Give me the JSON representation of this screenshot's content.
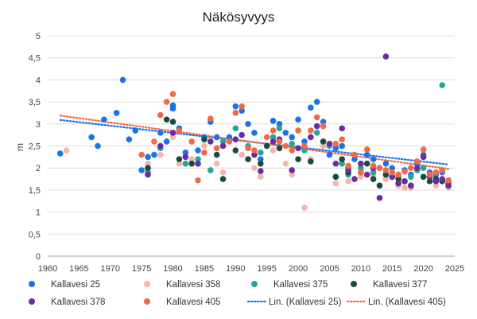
{
  "chart_data": {
    "type": "scatter",
    "title": "Näkösyvyys",
    "xlabel": "",
    "ylabel": "m",
    "xlim": [
      1960,
      2025
    ],
    "ylim": [
      0,
      5
    ],
    "x_ticks": [
      "1960",
      "1965",
      "1970",
      "1975",
      "1980",
      "1985",
      "1990",
      "1995",
      "2000",
      "2005",
      "2010",
      "2015",
      "2020",
      "2025"
    ],
    "y_ticks": [
      "0",
      "0,5",
      "1",
      "1,5",
      "2",
      "2,5",
      "3",
      "3,5",
      "4",
      "4,5",
      "5"
    ],
    "grid": true,
    "legend_position": "bottom",
    "series": [
      {
        "name": "Kallavesi 25",
        "color": "#1a73e8",
        "points": [
          [
            1962,
            2.33
          ],
          [
            1967,
            2.7
          ],
          [
            1968,
            2.5
          ],
          [
            1969,
            3.1
          ],
          [
            1971,
            3.25
          ],
          [
            1972,
            4.0
          ],
          [
            1973,
            2.65
          ],
          [
            1974,
            2.85
          ],
          [
            1975,
            1.95
          ],
          [
            1976,
            2.25
          ],
          [
            1977,
            2.3
          ],
          [
            1978,
            2.8
          ],
          [
            1979,
            2.6
          ],
          [
            1980,
            3.42
          ],
          [
            1980,
            3.35
          ],
          [
            1981,
            2.9
          ],
          [
            1982,
            2.35
          ],
          [
            1984,
            2.4
          ],
          [
            1985,
            2.7
          ],
          [
            1986,
            3.05
          ],
          [
            1987,
            2.7
          ],
          [
            1989,
            2.7
          ],
          [
            1990,
            3.4
          ],
          [
            1991,
            3.3
          ],
          [
            1992,
            3.0
          ],
          [
            1993,
            2.8
          ],
          [
            1994,
            2.2
          ],
          [
            1996,
            3.07
          ],
          [
            1997,
            3.0
          ],
          [
            1998,
            2.8
          ],
          [
            1999,
            2.7
          ],
          [
            2000,
            3.1
          ],
          [
            2001,
            2.6
          ],
          [
            2002,
            3.37
          ],
          [
            2003,
            3.5
          ],
          [
            2004,
            3.05
          ],
          [
            2005,
            2.3
          ],
          [
            2006,
            2.45
          ],
          [
            2007,
            2.5
          ],
          [
            2008,
            2.0
          ],
          [
            2009,
            2.2
          ],
          [
            2010,
            2.1
          ],
          [
            2011,
            2.3
          ],
          [
            2012,
            2.2
          ],
          [
            2013,
            2.0
          ],
          [
            2014,
            2.1
          ],
          [
            2015,
            2.0
          ],
          [
            2016,
            1.85
          ],
          [
            2017,
            1.95
          ],
          [
            2018,
            1.85
          ],
          [
            2019,
            2.1
          ],
          [
            2020,
            2.3
          ],
          [
            2021,
            1.9
          ],
          [
            2022,
            1.85
          ],
          [
            2023,
            1.9
          ],
          [
            2024,
            1.65
          ]
        ]
      },
      {
        "name": "Kallavesi 358",
        "color": "#f4b6ad",
        "points": [
          [
            1963,
            2.4
          ],
          [
            1976,
            2.1
          ],
          [
            1978,
            2.3
          ],
          [
            1980,
            2.7
          ],
          [
            1981,
            2.1
          ],
          [
            1983,
            2.2
          ],
          [
            1985,
            2.5
          ],
          [
            1987,
            2.1
          ],
          [
            1988,
            1.9
          ],
          [
            1991,
            2.3
          ],
          [
            1993,
            2.0
          ],
          [
            1994,
            1.8
          ],
          [
            1996,
            2.4
          ],
          [
            1998,
            2.1
          ],
          [
            1999,
            1.85
          ],
          [
            2001,
            1.1
          ],
          [
            2002,
            2.2
          ],
          [
            2004,
            2.5
          ],
          [
            2006,
            1.65
          ],
          [
            2008,
            1.7
          ],
          [
            2010,
            1.8
          ],
          [
            2012,
            1.85
          ],
          [
            2014,
            1.75
          ],
          [
            2016,
            1.6
          ],
          [
            2017,
            1.55
          ],
          [
            2018,
            1.55
          ],
          [
            2020,
            1.8
          ],
          [
            2022,
            1.6
          ],
          [
            2024,
            1.55
          ]
        ]
      },
      {
        "name": "Kallavesi 375",
        "color": "#26a69a",
        "points": [
          [
            1976,
            1.9
          ],
          [
            1978,
            2.45
          ],
          [
            1980,
            2.8
          ],
          [
            1982,
            2.1
          ],
          [
            1984,
            2.2
          ],
          [
            1986,
            1.95
          ],
          [
            1988,
            2.6
          ],
          [
            1990,
            2.9
          ],
          [
            1992,
            2.5
          ],
          [
            1994,
            2.35
          ],
          [
            1996,
            2.7
          ],
          [
            1997,
            2.9
          ],
          [
            1999,
            2.55
          ],
          [
            2001,
            2.4
          ],
          [
            2003,
            2.8
          ],
          [
            2005,
            2.5
          ],
          [
            2007,
            2.1
          ],
          [
            2008,
            1.85
          ],
          [
            2010,
            2.0
          ],
          [
            2012,
            1.9
          ],
          [
            2014,
            1.85
          ],
          [
            2016,
            1.8
          ],
          [
            2018,
            1.8
          ],
          [
            2019,
            1.95
          ],
          [
            2020,
            2.0
          ],
          [
            2021,
            1.8
          ],
          [
            2022,
            1.75
          ],
          [
            2023,
            3.88
          ],
          [
            2024,
            1.7
          ]
        ]
      },
      {
        "name": "Kallavesi 377",
        "color": "#164d3e",
        "points": [
          [
            1976,
            2.0
          ],
          [
            1979,
            3.1
          ],
          [
            1980,
            3.05
          ],
          [
            1981,
            2.2
          ],
          [
            1983,
            2.1
          ],
          [
            1985,
            2.65
          ],
          [
            1987,
            2.3
          ],
          [
            1988,
            1.75
          ],
          [
            1990,
            2.4
          ],
          [
            1992,
            2.2
          ],
          [
            1994,
            2.1
          ],
          [
            1995,
            2.5
          ],
          [
            1997,
            2.45
          ],
          [
            2000,
            2.2
          ],
          [
            2002,
            2.15
          ],
          [
            2004,
            2.6
          ],
          [
            2006,
            1.8
          ],
          [
            2007,
            2.2
          ],
          [
            2008,
            1.9
          ],
          [
            2010,
            1.9
          ],
          [
            2011,
            2.1
          ],
          [
            2012,
            1.75
          ],
          [
            2013,
            1.6
          ],
          [
            2014,
            1.85
          ],
          [
            2015,
            1.8
          ],
          [
            2016,
            1.75
          ],
          [
            2017,
            1.7
          ],
          [
            2018,
            1.6
          ],
          [
            2020,
            1.8
          ],
          [
            2021,
            1.7
          ],
          [
            2022,
            1.75
          ],
          [
            2023,
            1.7
          ],
          [
            2024,
            1.6
          ]
        ]
      },
      {
        "name": "Kallavesi 378",
        "color": "#6a2ca0",
        "points": [
          [
            1976,
            1.85
          ],
          [
            1978,
            2.5
          ],
          [
            1980,
            2.8
          ],
          [
            1982,
            2.25
          ],
          [
            1984,
            2.1
          ],
          [
            1986,
            2.6
          ],
          [
            1988,
            2.5
          ],
          [
            1990,
            2.65
          ],
          [
            1991,
            2.75
          ],
          [
            1993,
            2.3
          ],
          [
            1994,
            1.93
          ],
          [
            1996,
            2.6
          ],
          [
            1997,
            2.65
          ],
          [
            1999,
            1.95
          ],
          [
            2000,
            2.45
          ],
          [
            2002,
            2.7
          ],
          [
            2003,
            2.95
          ],
          [
            2005,
            2.55
          ],
          [
            2006,
            2.1
          ],
          [
            2007,
            2.9
          ],
          [
            2008,
            1.95
          ],
          [
            2009,
            1.75
          ],
          [
            2010,
            2.1
          ],
          [
            2011,
            1.85
          ],
          [
            2012,
            2.0
          ],
          [
            2013,
            1.32
          ],
          [
            2014,
            4.53
          ],
          [
            2015,
            1.8
          ],
          [
            2016,
            1.65
          ],
          [
            2017,
            1.7
          ],
          [
            2018,
            1.6
          ],
          [
            2019,
            2.0
          ],
          [
            2020,
            2.25
          ],
          [
            2021,
            1.8
          ],
          [
            2022,
            1.7
          ],
          [
            2023,
            1.75
          ],
          [
            2024,
            1.6
          ]
        ]
      },
      {
        "name": "Kallavesi 405",
        "color": "#f06a48",
        "points": [
          [
            1975,
            2.3
          ],
          [
            1977,
            2.6
          ],
          [
            1978,
            3.2
          ],
          [
            1979,
            3.5
          ],
          [
            1980,
            3.68
          ],
          [
            1981,
            2.85
          ],
          [
            1983,
            2.6
          ],
          [
            1984,
            1.72
          ],
          [
            1985,
            2.35
          ],
          [
            1986,
            3.12
          ],
          [
            1987,
            2.45
          ],
          [
            1989,
            2.6
          ],
          [
            1990,
            3.25
          ],
          [
            1991,
            3.4
          ],
          [
            1992,
            2.45
          ],
          [
            1993,
            2.4
          ],
          [
            1995,
            2.7
          ],
          [
            1996,
            2.85
          ],
          [
            1997,
            2.6
          ],
          [
            1998,
            2.5
          ],
          [
            1999,
            2.4
          ],
          [
            2000,
            2.85
          ],
          [
            2001,
            2.5
          ],
          [
            2002,
            2.85
          ],
          [
            2003,
            3.15
          ],
          [
            2004,
            2.95
          ],
          [
            2006,
            2.55
          ],
          [
            2007,
            2.65
          ],
          [
            2008,
            2.05
          ],
          [
            2009,
            2.3
          ],
          [
            2010,
            1.9
          ],
          [
            2011,
            2.42
          ],
          [
            2012,
            2.05
          ],
          [
            2013,
            2.0
          ],
          [
            2014,
            1.95
          ],
          [
            2015,
            1.9
          ],
          [
            2016,
            1.85
          ],
          [
            2017,
            1.92
          ],
          [
            2018,
            2.0
          ],
          [
            2019,
            2.15
          ],
          [
            2020,
            2.42
          ],
          [
            2021,
            1.85
          ],
          [
            2022,
            1.9
          ],
          [
            2023,
            1.95
          ],
          [
            2024,
            1.72
          ]
        ]
      }
    ],
    "trendlines": [
      {
        "name": "Lin. (Kallavesi 25)",
        "color": "#1a73e8",
        "x": [
          1962,
          2024
        ],
        "y": [
          3.09,
          2.08
        ]
      },
      {
        "name": "Lin. (Kallavesi 405)",
        "color": "#f06a48",
        "x": [
          1962,
          2024
        ],
        "y": [
          3.19,
          1.98
        ]
      }
    ]
  }
}
